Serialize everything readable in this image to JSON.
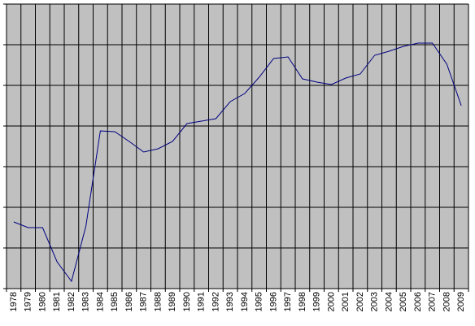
{
  "chart_data": {
    "type": "line",
    "categories": [
      "1978",
      "1979",
      "1980",
      "1981",
      "1982",
      "1983",
      "1984",
      "1985",
      "1986",
      "1987",
      "1988",
      "1989",
      "1990",
      "1991",
      "1992",
      "1993",
      "1994",
      "1995",
      "1996",
      "1997",
      "1998",
      "1999",
      "2000",
      "2001",
      "2002",
      "2003",
      "2004",
      "2005",
      "2006",
      "2007",
      "2008",
      "2009"
    ],
    "values": [
      1.64,
      1.5,
      1.5,
      0.66,
      0.18,
      1.54,
      3.88,
      3.86,
      3.62,
      3.36,
      3.44,
      3.62,
      4.06,
      4.12,
      4.18,
      4.6,
      4.8,
      5.2,
      5.66,
      5.7,
      5.16,
      5.08,
      5.02,
      5.18,
      5.28,
      5.74,
      5.84,
      5.96,
      6.04,
      6.04,
      5.52,
      4.5
    ],
    "color": "#000080",
    "background": "#c0c0c0",
    "ylim": [
      0,
      7
    ],
    "yticks": [
      0,
      1,
      2,
      3,
      4,
      5,
      6,
      7
    ],
    "grid": true,
    "show_ytick_labels": false
  }
}
